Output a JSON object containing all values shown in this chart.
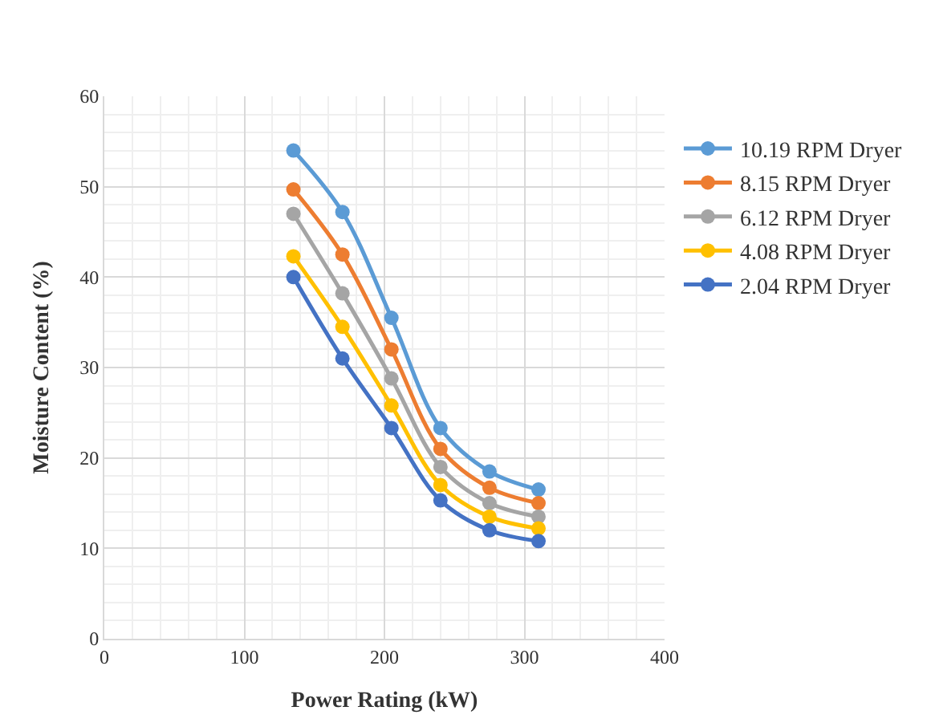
{
  "chart_data": {
    "type": "line",
    "xlabel": "Power Rating (kW)",
    "ylabel": "Moisture Content (%)",
    "x": [
      135,
      170,
      205,
      240,
      275,
      310
    ],
    "xlim": [
      0,
      400
    ],
    "xticks": [
      0,
      100,
      200,
      300,
      400
    ],
    "ylim": [
      0,
      60
    ],
    "yticks": [
      0,
      10,
      20,
      30,
      40,
      50,
      60
    ],
    "grid": true,
    "legend": "right",
    "marker": "circle",
    "line_style": "solid",
    "series": [
      {
        "name": "10.19 RPM Dryer",
        "color": "#5b9bd5",
        "values": [
          54,
          47.2,
          35.5,
          23.3,
          18.5,
          16.5
        ]
      },
      {
        "name": "8.15 RPM Dryer",
        "color": "#ed7d31",
        "values": [
          49.7,
          42.5,
          32,
          21,
          16.7,
          15
        ]
      },
      {
        "name": "6.12 RPM Dryer",
        "color": "#a5a5a5",
        "values": [
          47,
          38.2,
          28.8,
          19,
          15,
          13.5
        ]
      },
      {
        "name": "4.08 RPM Dryer",
        "color": "#ffc000",
        "values": [
          42.3,
          34.5,
          25.8,
          17,
          13.5,
          12.2
        ]
      },
      {
        "name": "2.04 RPM Dryer",
        "color": "#4472c4",
        "values": [
          40,
          31,
          23.3,
          15.3,
          12,
          10.8
        ]
      }
    ]
  }
}
